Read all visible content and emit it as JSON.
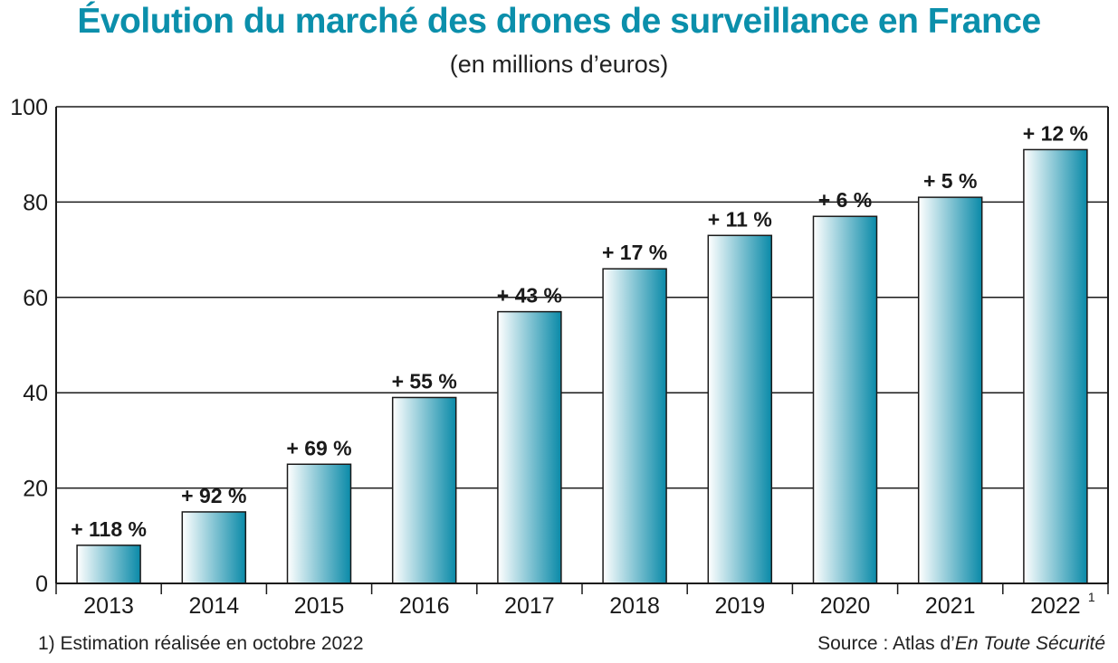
{
  "chart_data": {
    "type": "bar",
    "title": "Évolution du marché des drones de surveillance en France",
    "subtitle": "(en millions d’euros)",
    "categories": [
      "2013",
      "2014",
      "2015",
      "2016",
      "2017",
      "2018",
      "2019",
      "2020",
      "2021",
      "2022"
    ],
    "category_superscripts": [
      "",
      "",
      "",
      "",
      "",
      "",
      "",
      "",
      "",
      "1"
    ],
    "values": [
      8,
      15,
      25,
      39,
      57,
      66,
      73,
      77,
      81,
      91
    ],
    "data_labels": [
      "+ 118 %",
      "+ 92 %",
      "+ 69 %",
      "+ 55 %",
      "+ 43 %",
      "+ 17 %",
      "+ 11 %",
      "+ 6 %",
      "+ 5 %",
      "+ 12 %"
    ],
    "ylim": [
      0,
      100
    ],
    "yticks": [
      0,
      20,
      40,
      60,
      80,
      100
    ],
    "grid": true,
    "colors": {
      "bar_light": "#ffffff",
      "bar_dark": "#0a8aa8",
      "title": "#0b8fab"
    }
  },
  "footnote": "1) Estimation réalisée en octobre 2022",
  "source": {
    "prefix": "Source : Atlas d’",
    "italic": "En Toute Sécurité"
  }
}
